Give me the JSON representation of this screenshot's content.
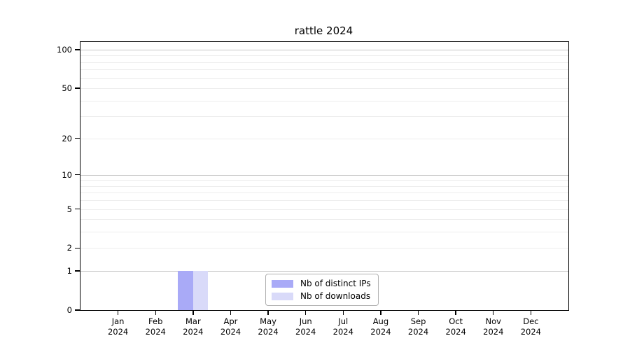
{
  "chart_data": {
    "type": "bar",
    "title": "rattle 2024",
    "categories": [
      {
        "month": "Jan",
        "year": "2024"
      },
      {
        "month": "Feb",
        "year": "2024"
      },
      {
        "month": "Mar",
        "year": "2024"
      },
      {
        "month": "Apr",
        "year": "2024"
      },
      {
        "month": "May",
        "year": "2024"
      },
      {
        "month": "Jun",
        "year": "2024"
      },
      {
        "month": "Jul",
        "year": "2024"
      },
      {
        "month": "Aug",
        "year": "2024"
      },
      {
        "month": "Sep",
        "year": "2024"
      },
      {
        "month": "Oct",
        "year": "2024"
      },
      {
        "month": "Nov",
        "year": "2024"
      },
      {
        "month": "Dec",
        "year": "2024"
      }
    ],
    "series": [
      {
        "name": "Nb of distinct IPs",
        "color": "#a9aaf7",
        "values": [
          0,
          0,
          1,
          0,
          0,
          0,
          0,
          0,
          0,
          0,
          0,
          0
        ]
      },
      {
        "name": "Nb of downloads",
        "color": "#d9daf9",
        "values": [
          0,
          0,
          1,
          0,
          0,
          0,
          0,
          0,
          0,
          0,
          0,
          0
        ]
      }
    ],
    "xlabel": "",
    "ylabel": "",
    "yscale": "log1p",
    "ylim": [
      0,
      115
    ],
    "yticks": [
      0,
      1,
      2,
      5,
      10,
      20,
      50,
      100
    ],
    "grid": {
      "major_values": [
        1,
        10,
        100
      ],
      "minor_values": [
        2,
        3,
        4,
        5,
        6,
        7,
        8,
        9,
        20,
        30,
        40,
        50,
        60,
        70,
        80,
        90
      ],
      "major_color": "#c6c6c6",
      "minor_color": "#ededed"
    },
    "legend_position": "inside-bottom-center"
  }
}
